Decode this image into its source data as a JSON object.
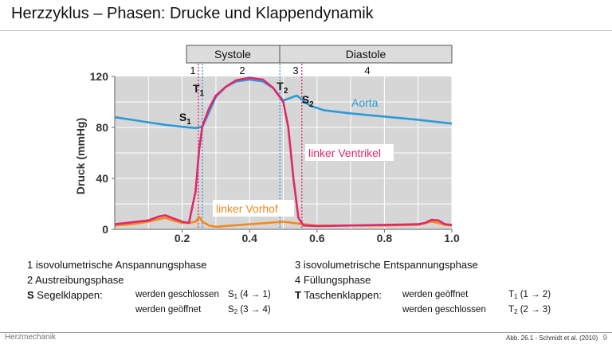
{
  "slide": {
    "title": "Herzzyklus – Phasen: Drucke und Klappendynamik",
    "footer_left": "Herzmechanik",
    "footer_source": "Abb. 26.1 -  Schmidt et al. (2010)",
    "page_number": "9"
  },
  "chart_data": {
    "type": "line",
    "xlim": [
      0.0,
      1.0
    ],
    "ylim": [
      0,
      120
    ],
    "xticks": [
      "0.2",
      "0.4",
      "0.6",
      "0.8",
      "1.0"
    ],
    "yticks": [
      "0",
      "40",
      "80",
      "120"
    ],
    "ylabel": "Druck (mmHg)",
    "xlabel": "",
    "grid": true,
    "phase_bar": {
      "numbers": [
        "1",
        "2",
        "3",
        "4"
      ],
      "systole": "Systole",
      "diastole": "Diastole"
    },
    "series": [
      {
        "name": "Aorta",
        "color": "#2a9bd6",
        "points": [
          [
            0.0,
            88
          ],
          [
            0.05,
            86
          ],
          [
            0.1,
            84
          ],
          [
            0.15,
            82
          ],
          [
            0.2,
            80.5
          ],
          [
            0.24,
            79.5
          ],
          [
            0.26,
            80.5
          ],
          [
            0.28,
            92
          ],
          [
            0.3,
            104
          ],
          [
            0.33,
            112
          ],
          [
            0.36,
            116
          ],
          [
            0.4,
            117.5
          ],
          [
            0.44,
            116
          ],
          [
            0.47,
            111
          ],
          [
            0.5,
            101
          ],
          [
            0.52,
            103
          ],
          [
            0.54,
            105
          ],
          [
            0.56,
            101
          ],
          [
            0.58,
            97
          ],
          [
            0.62,
            93.5
          ],
          [
            0.7,
            91
          ],
          [
            0.8,
            88.5
          ],
          [
            0.9,
            86
          ],
          [
            1.0,
            83
          ]
        ]
      },
      {
        "name": "linker Ventrikel",
        "color": "#e0266c",
        "points": [
          [
            0.0,
            4
          ],
          [
            0.05,
            5.5
          ],
          [
            0.1,
            7
          ],
          [
            0.13,
            10
          ],
          [
            0.15,
            11
          ],
          [
            0.18,
            8
          ],
          [
            0.2,
            6
          ],
          [
            0.22,
            5
          ],
          [
            0.24,
            30
          ],
          [
            0.25,
            62
          ],
          [
            0.26,
            81
          ],
          [
            0.28,
            95
          ],
          [
            0.3,
            105
          ],
          [
            0.33,
            112
          ],
          [
            0.36,
            117
          ],
          [
            0.4,
            119
          ],
          [
            0.44,
            117.5
          ],
          [
            0.47,
            111
          ],
          [
            0.5,
            100
          ],
          [
            0.515,
            80
          ],
          [
            0.53,
            40
          ],
          [
            0.545,
            9
          ],
          [
            0.56,
            3
          ],
          [
            0.6,
            2.5
          ],
          [
            0.7,
            3
          ],
          [
            0.8,
            3.5
          ],
          [
            0.9,
            4
          ],
          [
            0.92,
            5
          ],
          [
            0.94,
            7.5
          ],
          [
            0.96,
            7
          ],
          [
            0.98,
            4
          ],
          [
            1.0,
            3.5
          ]
        ]
      },
      {
        "name": "linker Vorhof",
        "color": "#f08a1c",
        "points": [
          [
            0.0,
            3
          ],
          [
            0.05,
            4
          ],
          [
            0.1,
            6
          ],
          [
            0.13,
            8
          ],
          [
            0.15,
            9
          ],
          [
            0.18,
            6.5
          ],
          [
            0.2,
            5
          ],
          [
            0.22,
            5
          ],
          [
            0.24,
            6
          ],
          [
            0.25,
            10
          ],
          [
            0.26,
            6
          ],
          [
            0.28,
            3
          ],
          [
            0.3,
            2
          ],
          [
            0.35,
            3
          ],
          [
            0.4,
            4
          ],
          [
            0.45,
            5
          ],
          [
            0.5,
            6
          ],
          [
            0.53,
            5
          ],
          [
            0.56,
            4
          ],
          [
            0.6,
            3
          ],
          [
            0.7,
            3
          ],
          [
            0.8,
            3
          ],
          [
            0.9,
            3.5
          ],
          [
            0.94,
            6
          ],
          [
            0.96,
            5
          ],
          [
            0.98,
            3.5
          ],
          [
            1.0,
            3
          ]
        ]
      }
    ],
    "valve_markers": [
      {
        "label": "S",
        "sub": "1",
        "x": 0.248
      },
      {
        "label": "T",
        "sub": "1",
        "x": 0.26
      },
      {
        "label": "T",
        "sub": "2",
        "x": 0.49
      },
      {
        "label": "S",
        "sub": "2",
        "x": 0.555
      }
    ]
  },
  "legend": {
    "left": {
      "phase1": "1 isovolumetrische Anspannungsphase",
      "phase2": "2 Austreibungsphase",
      "s_key": "S",
      "s_label": "Segelklappen:",
      "s_closed": "werden geschlossen",
      "s_closed_sym": "S",
      "s_closed_sub": "1",
      "s_closed_seq": "(4 → 1)",
      "s_open": "werden geöffnet",
      "s_open_sym": "S",
      "s_open_sub": "2",
      "s_open_seq": "(3 → 4)"
    },
    "right": {
      "phase3": "3 isovolumetrische Entspannungsphase",
      "phase4": "4 Füllungsphase",
      "t_key": "T",
      "t_label": "Taschenklappen:",
      "t_open": "werden geöffnet",
      "t_open_sym": "T",
      "t_open_sub": "1",
      "t_open_seq": "(1 → 2)",
      "t_closed": "werden geschlossen",
      "t_closed_sym": "T",
      "t_closed_sub": "2",
      "t_closed_seq": "(2 → 3)"
    }
  }
}
